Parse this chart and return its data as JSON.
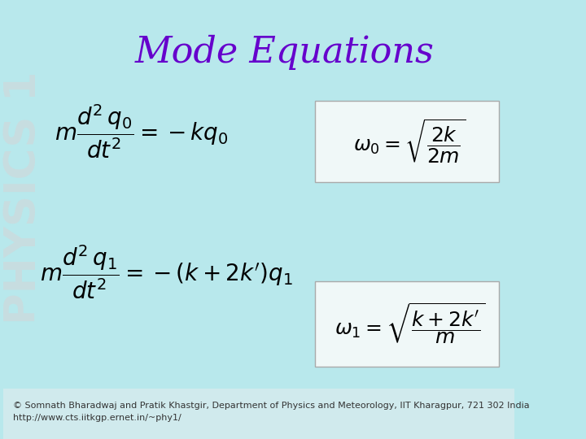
{
  "background_color": "#b8e8ec",
  "title": "Mode Equations",
  "title_color": "#6600cc",
  "title_fontsize": 32,
  "watermark_text": "PHYSICS 1",
  "watermark_color": "#c8dde0",
  "eq1_left": "m\\dfrac{d^2\\,q_0}{dt^2} = -kq_0",
  "eq1_right": "\\omega_0 = \\sqrt{\\dfrac{2k}{2m}}",
  "eq2_left": "m\\dfrac{d^2\\,q_1}{dt^2} = -(k+2k^{\\prime})q_1",
  "eq2_right": "\\omega_1 = \\sqrt{\\dfrac{k+2k^{\\prime}}{m}}",
  "box_facecolor": "#f0f8f8",
  "box_edgecolor": "#aaaaaa",
  "eq_color": "#000000",
  "footer_text": "© Somnath Bharadwaj and Pratik Khastgir, Department of Physics and Meteorology, IIT Kharagpur, 721 302 India\nhttp://www.cts.iitkgp.ernet.in/~phy1/",
  "footer_fontsize": 8,
  "footer_color": "#333333"
}
